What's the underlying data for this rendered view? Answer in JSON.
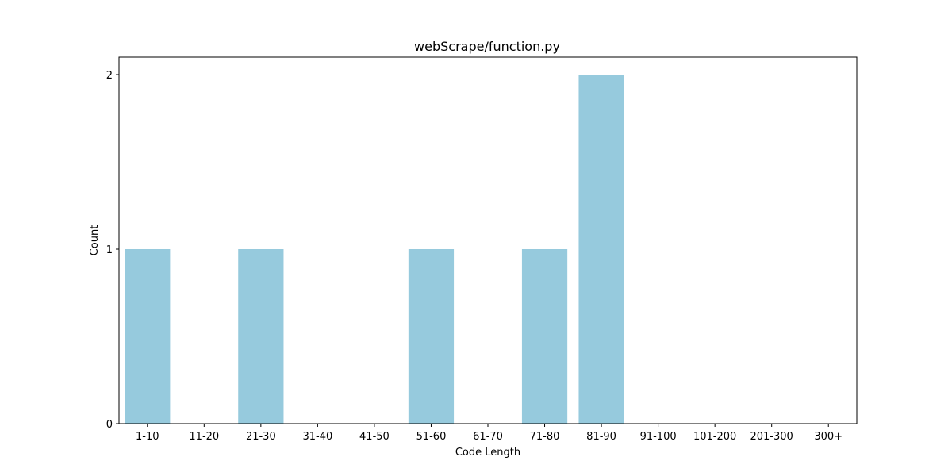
{
  "chart_data": {
    "type": "bar",
    "title": "webScrape/function.py",
    "xlabel": "Code Length",
    "ylabel": "Count",
    "categories": [
      "1-10",
      "11-20",
      "21-30",
      "31-40",
      "41-50",
      "51-60",
      "61-70",
      "71-80",
      "81-90",
      "91-100",
      "101-200",
      "201-300",
      "300+"
    ],
    "values": [
      1,
      0,
      1,
      0,
      0,
      1,
      0,
      1,
      2,
      0,
      0,
      0,
      0
    ],
    "ylim": [
      0,
      2.1
    ],
    "yticks": [
      0,
      1,
      2
    ],
    "bar_color": "#96cadd",
    "grid": false,
    "legend": "none"
  }
}
